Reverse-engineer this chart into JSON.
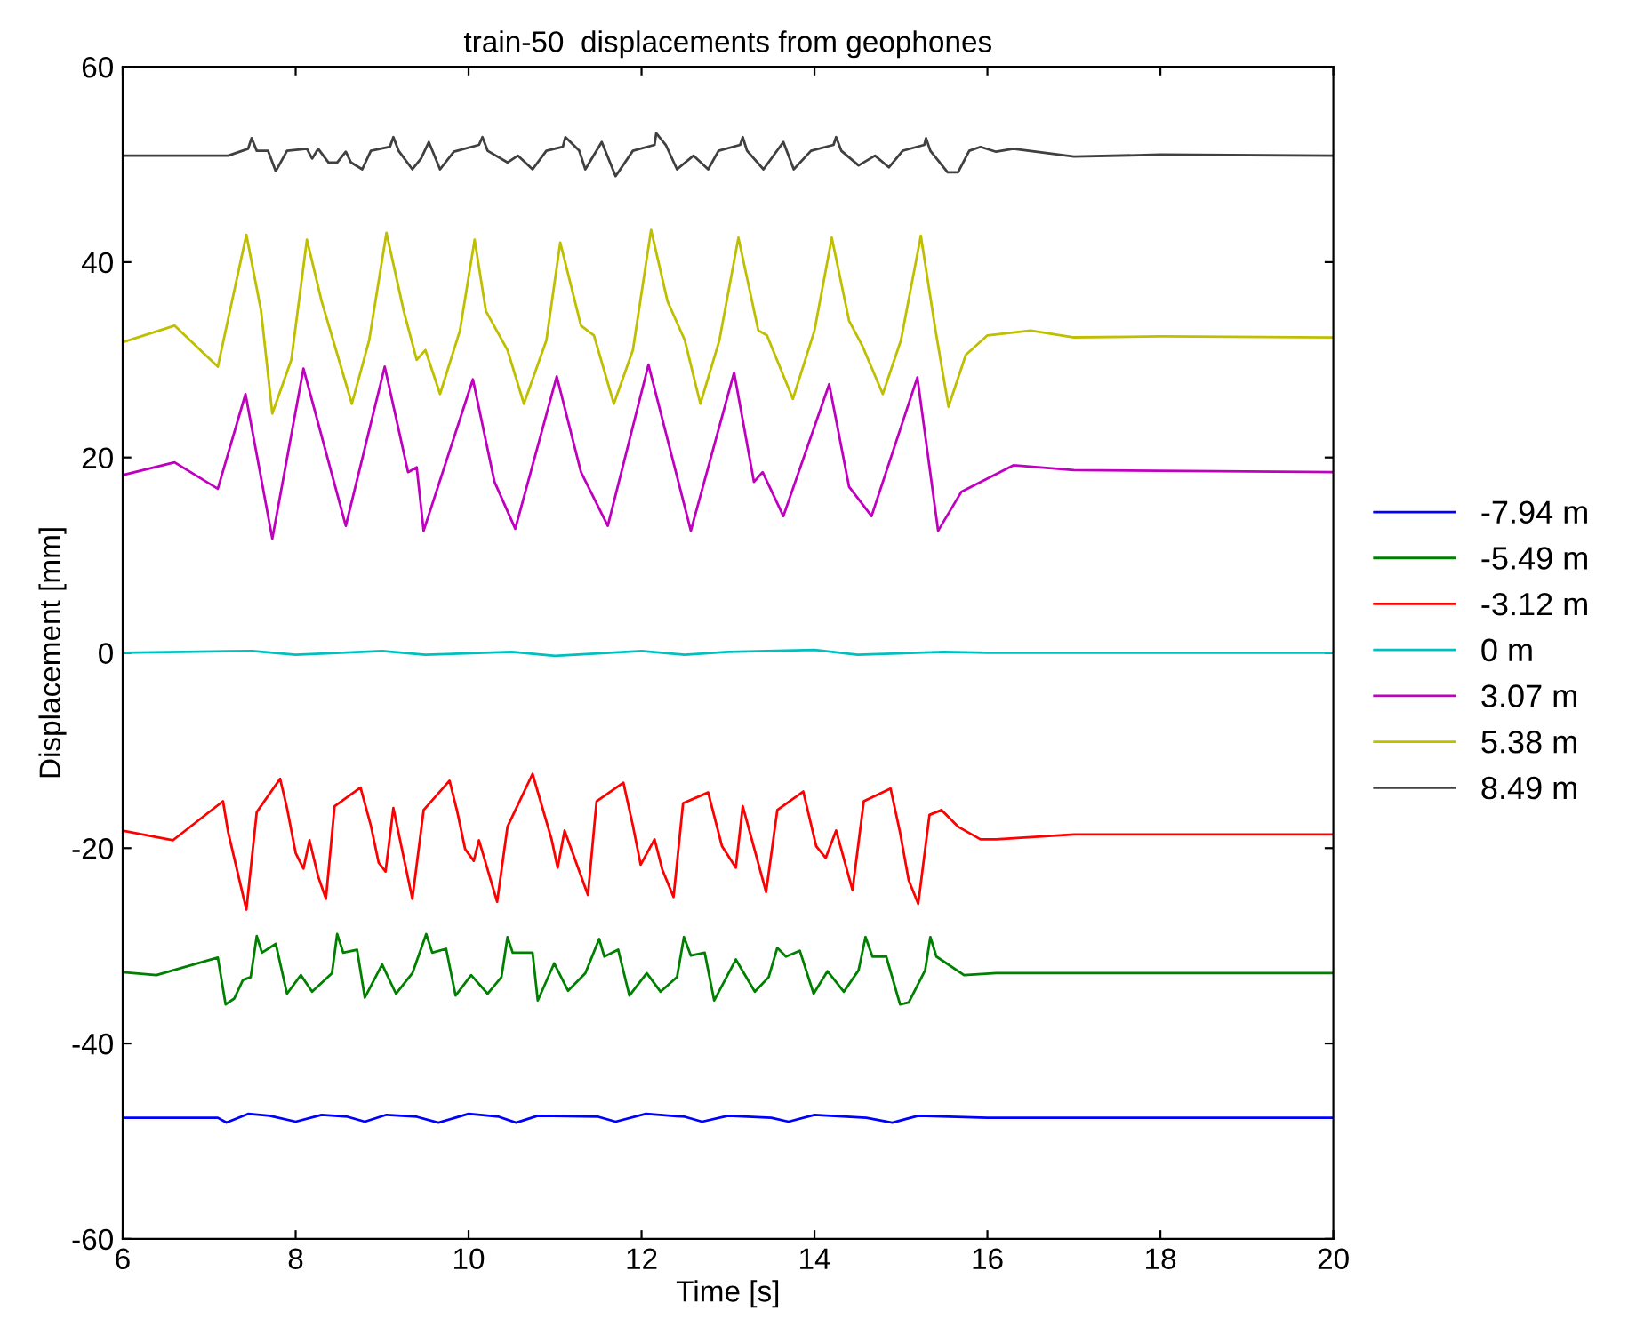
{
  "chart_data": {
    "type": "line",
    "title": "train-50  displacements from geophones",
    "xlabel": "Time [s]",
    "ylabel": "Displacement [mm]",
    "xlim": [
      6,
      20
    ],
    "ylim": [
      -60,
      60
    ],
    "xticks": [
      6,
      8,
      10,
      12,
      14,
      16,
      18,
      20
    ],
    "yticks": [
      -60,
      -40,
      -20,
      0,
      20,
      40,
      60
    ],
    "grid": false,
    "legend": "right",
    "marker": "none",
    "line_style": "solid",
    "series": [
      {
        "name": "-7.94 m",
        "color": "#0000ff",
        "x": [
          6,
          7.1,
          7.2,
          7.45,
          7.7,
          8.0,
          8.3,
          8.6,
          8.8,
          9.05,
          9.4,
          9.65,
          10.0,
          10.35,
          10.55,
          10.8,
          11.5,
          11.7,
          12.05,
          12.5,
          12.7,
          13.0,
          13.5,
          13.7,
          14.0,
          14.6,
          14.9,
          15.2,
          16,
          20
        ],
        "values": [
          -47.6,
          -47.6,
          -48.1,
          -47.2,
          -47.4,
          -48.0,
          -47.3,
          -47.5,
          -48.0,
          -47.3,
          -47.5,
          -48.1,
          -47.2,
          -47.5,
          -48.1,
          -47.4,
          -47.5,
          -48.0,
          -47.2,
          -47.5,
          -48.0,
          -47.4,
          -47.6,
          -48.0,
          -47.3,
          -47.6,
          -48.1,
          -47.4,
          -47.6,
          -47.6
        ]
      },
      {
        "name": "-5.49 m",
        "color": "#008000",
        "x": [
          6.0,
          6.39,
          7.1,
          7.19,
          7.29,
          7.39,
          7.48,
          7.55,
          7.61,
          7.77,
          7.9,
          8.06,
          8.19,
          8.42,
          8.48,
          8.55,
          8.71,
          8.8,
          9.0,
          9.16,
          9.35,
          9.51,
          9.58,
          9.74,
          9.85,
          10.03,
          10.22,
          10.38,
          10.45,
          10.51,
          10.74,
          10.8,
          10.99,
          11.15,
          11.35,
          11.51,
          11.57,
          11.73,
          11.86,
          12.06,
          12.22,
          12.41,
          12.49,
          12.57,
          12.73,
          12.84,
          13.09,
          13.31,
          13.47,
          13.57,
          13.67,
          13.83,
          13.99,
          14.15,
          14.34,
          14.51,
          14.59,
          14.67,
          14.83,
          14.99,
          15.09,
          15.28,
          15.34,
          15.41,
          15.73,
          16.1,
          17,
          20
        ],
        "values": [
          -32.7,
          -33.0,
          -31.2,
          -36.0,
          -35.4,
          -33.5,
          -33.2,
          -29.0,
          -30.7,
          -29.8,
          -34.9,
          -33.0,
          -34.7,
          -32.8,
          -28.8,
          -30.7,
          -30.4,
          -35.3,
          -31.9,
          -34.9,
          -32.8,
          -28.8,
          -30.7,
          -30.3,
          -35.1,
          -33.0,
          -34.9,
          -33.2,
          -29.1,
          -30.7,
          -30.7,
          -35.6,
          -31.8,
          -34.6,
          -32.8,
          -29.3,
          -31.1,
          -30.4,
          -35.1,
          -32.8,
          -34.7,
          -33.2,
          -29.1,
          -31.0,
          -30.7,
          -35.6,
          -31.4,
          -34.7,
          -33.2,
          -30.2,
          -31.1,
          -30.5,
          -34.9,
          -32.6,
          -34.7,
          -32.5,
          -29.1,
          -31.1,
          -31.1,
          -36.0,
          -35.8,
          -32.5,
          -29.1,
          -31.1,
          -33.0,
          -32.8,
          -32.8,
          -32.8
        ]
      },
      {
        "name": "-3.12 m",
        "color": "#ff0000",
        "x": [
          6.0,
          6.58,
          7.16,
          7.22,
          7.43,
          7.55,
          7.82,
          7.9,
          8.0,
          8.09,
          8.16,
          8.26,
          8.35,
          8.45,
          8.75,
          8.87,
          8.96,
          9.04,
          9.13,
          9.35,
          9.48,
          9.78,
          9.87,
          9.96,
          10.06,
          10.12,
          10.33,
          10.45,
          10.74,
          10.96,
          11.03,
          11.11,
          11.38,
          11.48,
          11.79,
          11.9,
          11.99,
          12.15,
          12.24,
          12.37,
          12.48,
          12.77,
          12.93,
          13.09,
          13.17,
          13.44,
          13.57,
          13.87,
          14.02,
          14.13,
          14.25,
          14.44,
          14.57,
          14.88,
          14.99,
          15.09,
          15.2,
          15.33,
          15.47,
          15.66,
          15.92,
          16.1,
          17,
          20
        ],
        "values": [
          -18.2,
          -19.2,
          -15.2,
          -18.4,
          -26.3,
          -16.3,
          -12.9,
          -15.9,
          -20.5,
          -22.1,
          -19.2,
          -22.9,
          -25.2,
          -15.7,
          -13.8,
          -17.7,
          -21.5,
          -22.4,
          -15.9,
          -25.2,
          -16.1,
          -13.1,
          -16.3,
          -20.1,
          -21.3,
          -19.2,
          -25.5,
          -17.8,
          -12.4,
          -19.1,
          -22.0,
          -18.2,
          -24.8,
          -15.2,
          -13.3,
          -17.7,
          -21.7,
          -19.1,
          -22.2,
          -25.0,
          -15.4,
          -14.3,
          -19.8,
          -22.0,
          -15.7,
          -24.5,
          -16.1,
          -14.2,
          -19.8,
          -21.0,
          -18.2,
          -24.3,
          -15.2,
          -13.9,
          -18.4,
          -23.3,
          -25.7,
          -16.6,
          -16.1,
          -17.8,
          -19.1,
          -19.1,
          -18.6,
          -18.6
        ]
      },
      {
        "name": "0 m",
        "color": "#00bfbf",
        "x": [
          6,
          7.5,
          8,
          9,
          9.5,
          10.5,
          11,
          12,
          12.5,
          13,
          14,
          14.5,
          15.5,
          16,
          20
        ],
        "values": [
          0,
          0.2,
          -0.2,
          0.2,
          -0.2,
          0.1,
          -0.3,
          0.2,
          -0.2,
          0.1,
          0.3,
          -0.2,
          0.1,
          0,
          0
        ]
      },
      {
        "name": "3.07 m",
        "color": "#bf00bf",
        "x": [
          6,
          6.6,
          7.1,
          7.42,
          7.73,
          8.09,
          8.58,
          9.03,
          9.3,
          9.4,
          9.48,
          10.05,
          10.3,
          10.54,
          11.02,
          11.3,
          11.61,
          12.08,
          12.57,
          13.07,
          13.3,
          13.4,
          13.64,
          14.17,
          14.4,
          14.66,
          15.19,
          15.43,
          15.7,
          16.3,
          17,
          20
        ],
        "values": [
          18.2,
          19.5,
          16.8,
          26.5,
          11.7,
          29.1,
          13.0,
          29.3,
          18.5,
          19.0,
          12.5,
          28.0,
          17.5,
          12.7,
          28.3,
          18.5,
          13.0,
          29.5,
          12.5,
          28.7,
          17.5,
          18.5,
          14.0,
          27.5,
          17.0,
          14.0,
          28.2,
          12.5,
          16.5,
          19.2,
          18.7,
          18.5
        ]
      },
      {
        "name": "5.38 m",
        "color": "#bfbf00",
        "x": [
          6.0,
          6.6,
          7.1,
          7.43,
          7.6,
          7.73,
          7.95,
          8.13,
          8.3,
          8.65,
          8.85,
          9.05,
          9.25,
          9.4,
          9.5,
          9.67,
          9.9,
          10.07,
          10.2,
          10.45,
          10.64,
          10.9,
          11.06,
          11.3,
          11.45,
          11.68,
          11.9,
          12.11,
          12.3,
          12.5,
          12.68,
          12.9,
          13.12,
          13.35,
          13.45,
          13.75,
          14.0,
          14.2,
          14.4,
          14.55,
          14.79,
          15.0,
          15.23,
          15.4,
          15.55,
          15.75,
          16.0,
          16.5,
          17,
          18,
          20
        ],
        "values": [
          31.8,
          33.5,
          29.3,
          42.8,
          35,
          24.5,
          30,
          42.3,
          36,
          25.5,
          32,
          43,
          35,
          30,
          31,
          26.5,
          33,
          42.3,
          35,
          31,
          25.5,
          32,
          42,
          33.5,
          32.5,
          25.5,
          31,
          43.3,
          36,
          32,
          25.5,
          32,
          42.5,
          33,
          32.5,
          26,
          33,
          42.5,
          34,
          31.5,
          26.5,
          32,
          42.7,
          33,
          25.2,
          30.5,
          32.5,
          33,
          32.3,
          32.4,
          32.3
        ]
      },
      {
        "name": "8.49 m",
        "color": "#404040",
        "x": [
          6.0,
          7.22,
          7.45,
          7.49,
          7.55,
          7.68,
          7.77,
          7.9,
          8.13,
          8.19,
          8.26,
          8.38,
          8.48,
          8.58,
          8.64,
          8.77,
          8.87,
          9.09,
          9.13,
          9.19,
          9.35,
          9.45,
          9.54,
          9.67,
          9.83,
          10.12,
          10.16,
          10.22,
          10.45,
          10.57,
          10.74,
          10.9,
          11.09,
          11.12,
          11.28,
          11.35,
          11.54,
          11.7,
          11.9,
          12.15,
          12.17,
          12.28,
          12.41,
          12.6,
          12.77,
          12.89,
          13.14,
          13.17,
          13.22,
          13.41,
          13.64,
          13.76,
          13.96,
          14.22,
          14.25,
          14.31,
          14.51,
          14.7,
          14.86,
          15.02,
          15.27,
          15.29,
          15.34,
          15.54,
          15.66,
          15.79,
          15.92,
          16.1,
          16.3,
          17,
          18,
          20
        ],
        "values": [
          50.9,
          50.9,
          51.6,
          52.7,
          51.4,
          51.4,
          49.3,
          51.4,
          51.6,
          50.6,
          51.6,
          50.2,
          50.2,
          51.3,
          50.2,
          49.5,
          51.4,
          51.8,
          52.8,
          51.4,
          49.5,
          50.6,
          52.3,
          49.5,
          51.3,
          52.0,
          52.8,
          51.4,
          50.2,
          50.9,
          49.5,
          51.4,
          51.8,
          52.8,
          51.4,
          49.5,
          52.3,
          48.8,
          51.4,
          52.0,
          53.2,
          52.0,
          49.5,
          50.9,
          49.5,
          51.4,
          52.0,
          52.8,
          51.4,
          49.5,
          52.3,
          49.5,
          51.4,
          52.0,
          52.8,
          51.4,
          49.9,
          50.9,
          49.7,
          51.4,
          52.0,
          52.7,
          51.4,
          49.2,
          49.2,
          51.4,
          51.8,
          51.3,
          51.6,
          50.8,
          51.0,
          50.9
        ]
      }
    ]
  }
}
